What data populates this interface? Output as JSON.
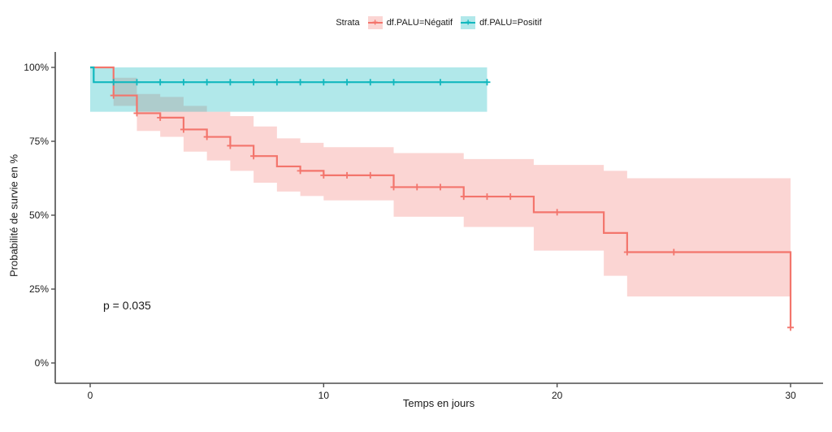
{
  "legend": {
    "title": "Strata",
    "entries": [
      {
        "label": "df.PALU=Négatif"
      },
      {
        "label": "df.PALU=Positif"
      }
    ]
  },
  "annotation": {
    "p_value": "p = 0.035"
  },
  "colors": {
    "negatif_line": "#F3756C",
    "negatif_band": "rgba(243,117,108,0.30)",
    "positif_line": "#12B8BE",
    "positif_band": "rgba(18,184,190,0.33)",
    "axis": "#4d4d4d",
    "text": "#1a1a1a"
  },
  "chart_data": {
    "type": "line",
    "subtype": "kaplan-meier-step",
    "title": "",
    "xlabel": "Temps en jours",
    "ylabel": "Probabilité de survie en %",
    "xlim": [
      0,
      30
    ],
    "ylim": [
      0,
      100
    ],
    "x_ticks": [
      0,
      10,
      20,
      30
    ],
    "y_ticks": [
      0,
      25,
      50,
      75,
      100
    ],
    "y_tick_labels": [
      "0%",
      "25%",
      "50%",
      "75%",
      "100%"
    ],
    "grid": false,
    "legend_position": "top",
    "p_value": 0.035,
    "series": [
      {
        "name": "df.PALU=Négatif",
        "steps": [
          {
            "t": 0,
            "s": 100,
            "lo": null,
            "hi": null
          },
          {
            "t": 1,
            "s": 90.5,
            "lo": 87,
            "hi": 96.5
          },
          {
            "t": 2,
            "s": 84.5,
            "lo": 78.5,
            "hi": 91
          },
          {
            "t": 3,
            "s": 83,
            "lo": 76.5,
            "hi": 90
          },
          {
            "t": 4,
            "s": 79,
            "lo": 71.5,
            "hi": 87
          },
          {
            "t": 5,
            "s": 76.5,
            "lo": 68.5,
            "hi": 85
          },
          {
            "t": 6,
            "s": 73.5,
            "lo": 65,
            "hi": 83.5
          },
          {
            "t": 7,
            "s": 70,
            "lo": 61,
            "hi": 80
          },
          {
            "t": 8,
            "s": 66.5,
            "lo": 58,
            "hi": 76
          },
          {
            "t": 9,
            "s": 65,
            "lo": 56.5,
            "hi": 74.5
          },
          {
            "t": 10,
            "s": 63.5,
            "lo": 55,
            "hi": 73
          },
          {
            "t": 13,
            "s": 59.5,
            "lo": 49.5,
            "hi": 71
          },
          {
            "t": 16,
            "s": 56.3,
            "lo": 46,
            "hi": 69
          },
          {
            "t": 19,
            "s": 51,
            "lo": 38,
            "hi": 67
          },
          {
            "t": 22,
            "s": 44,
            "lo": 29.5,
            "hi": 65
          },
          {
            "t": 23,
            "s": 37.5,
            "lo": 22.5,
            "hi": 62.5
          },
          {
            "t": 30,
            "s": 12,
            "lo": null,
            "hi": null
          }
        ],
        "censors": [
          {
            "t": 1,
            "s": 90.5
          },
          {
            "t": 2,
            "s": 84.5
          },
          {
            "t": 3,
            "s": 83
          },
          {
            "t": 4,
            "s": 79
          },
          {
            "t": 5,
            "s": 76.5
          },
          {
            "t": 6,
            "s": 73.5
          },
          {
            "t": 7,
            "s": 70
          },
          {
            "t": 9,
            "s": 65
          },
          {
            "t": 10,
            "s": 63.5
          },
          {
            "t": 11,
            "s": 63.5
          },
          {
            "t": 12,
            "s": 63.5
          },
          {
            "t": 13,
            "s": 59.5
          },
          {
            "t": 14,
            "s": 59.5
          },
          {
            "t": 15,
            "s": 59.5
          },
          {
            "t": 16,
            "s": 56.3
          },
          {
            "t": 17,
            "s": 56.3
          },
          {
            "t": 18,
            "s": 56.3
          },
          {
            "t": 20,
            "s": 51
          },
          {
            "t": 23,
            "s": 37.5
          },
          {
            "t": 25,
            "s": 37.5
          },
          {
            "t": 30,
            "s": 12
          }
        ]
      },
      {
        "name": "df.PALU=Positif",
        "steps": [
          {
            "t": 0,
            "s": 100,
            "lo": 85,
            "hi": 100
          },
          {
            "t": 0.15,
            "s": 95,
            "lo": 85,
            "hi": 100
          },
          {
            "t": 17,
            "s": 95,
            "lo": null,
            "hi": null
          }
        ],
        "censors": [
          {
            "t": 1,
            "s": 95
          },
          {
            "t": 2,
            "s": 95
          },
          {
            "t": 3,
            "s": 95
          },
          {
            "t": 4,
            "s": 95
          },
          {
            "t": 5,
            "s": 95
          },
          {
            "t": 6,
            "s": 95
          },
          {
            "t": 7,
            "s": 95
          },
          {
            "t": 8,
            "s": 95
          },
          {
            "t": 9,
            "s": 95
          },
          {
            "t": 10,
            "s": 95
          },
          {
            "t": 11,
            "s": 95
          },
          {
            "t": 12,
            "s": 95
          },
          {
            "t": 13,
            "s": 95
          },
          {
            "t": 15,
            "s": 95
          },
          {
            "t": 17,
            "s": 95
          }
        ]
      }
    ]
  }
}
